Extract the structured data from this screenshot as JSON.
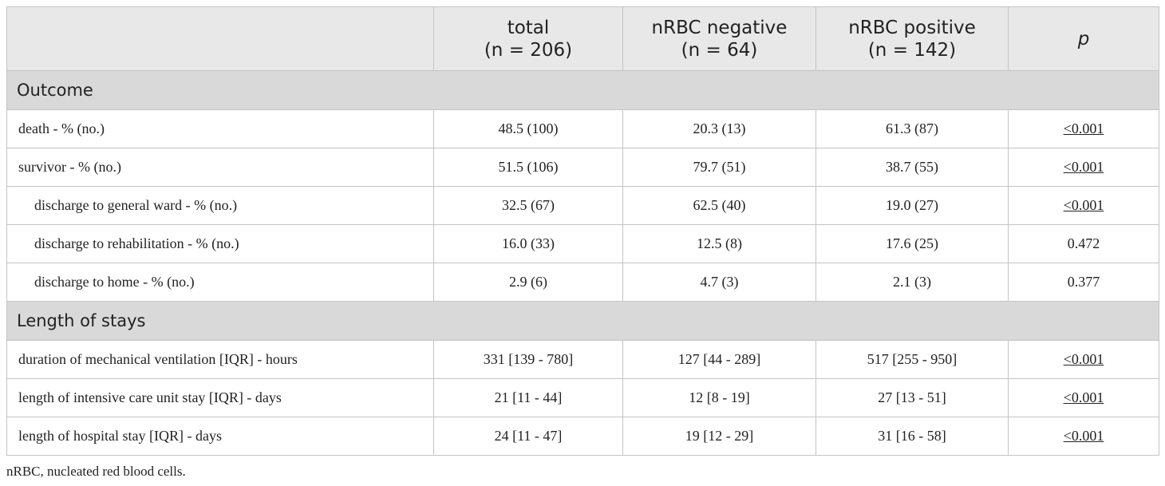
{
  "table": {
    "columns": [
      {
        "lines": [
          "total",
          "(n = 206)"
        ]
      },
      {
        "lines": [
          "nRBC negative",
          "(n = 64)"
        ]
      },
      {
        "lines": [
          "nRBC positive",
          "(n = 142)"
        ]
      },
      {
        "lines": [
          "p"
        ]
      }
    ],
    "sections": [
      {
        "title": "Outcome",
        "rows": [
          {
            "label": "death - % (no.)",
            "level": 1,
            "cells": [
              "48.5 (100)",
              "20.3 (13)",
              "61.3 (87)",
              "<0.001"
            ],
            "underline_p": true
          },
          {
            "label": "survivor - % (no.)",
            "level": 1,
            "cells": [
              "51.5 (106)",
              "79.7 (51)",
              "38.7 (55)",
              "<0.001"
            ],
            "underline_p": true
          },
          {
            "label": "discharge to general ward - % (no.)",
            "level": 2,
            "cells": [
              "32.5 (67)",
              "62.5 (40)",
              "19.0 (27)",
              "<0.001"
            ],
            "underline_p": true
          },
          {
            "label": "discharge to rehabilitation - % (no.)",
            "level": 2,
            "cells": [
              "16.0 (33)",
              "12.5 (8)",
              "17.6 (25)",
              "0.472"
            ],
            "underline_p": false
          },
          {
            "label": "discharge to home - % (no.)",
            "level": 2,
            "cells": [
              "2.9 (6)",
              "4.7 (3)",
              "2.1 (3)",
              "0.377"
            ],
            "underline_p": false
          }
        ]
      },
      {
        "title": "Length of stays",
        "rows": [
          {
            "label": "duration of mechanical ventilation [IQR] - hours",
            "level": 1,
            "cells": [
              "331 [139 - 780]",
              "127 [44 - 289]",
              "517 [255 - 950]",
              "<0.001"
            ],
            "underline_p": true
          },
          {
            "label": "length of intensive care unit stay [IQR] - days",
            "level": 1,
            "cells": [
              "21 [11 - 44]",
              "12 [8 - 19]",
              "27 [13 - 51]",
              "<0.001"
            ],
            "underline_p": true
          },
          {
            "label": "length of hospital stay [IQR] - days",
            "level": 1,
            "cells": [
              "24 [11 - 47]",
              "19 [12 - 29]",
              "31 [16 - 58]",
              "<0.001"
            ],
            "underline_p": true
          }
        ]
      }
    ],
    "footnote": "nRBC, nucleated red blood cells."
  }
}
